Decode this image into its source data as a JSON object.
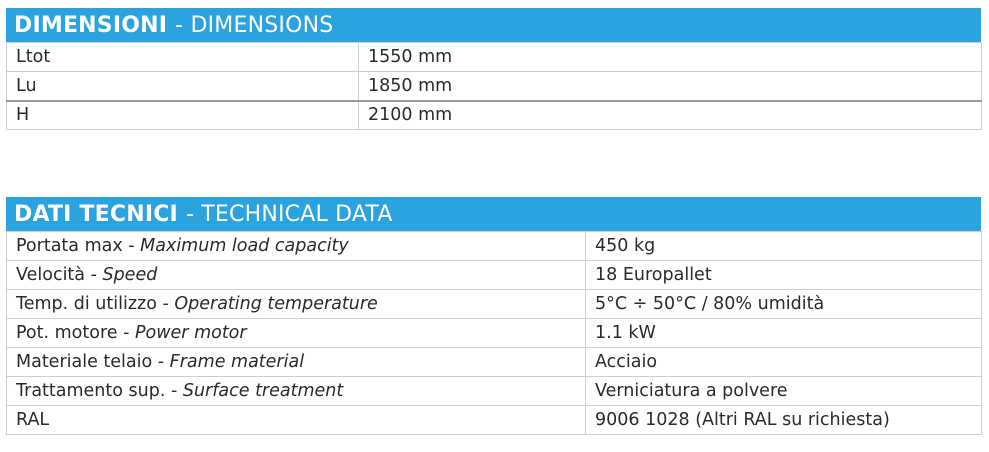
{
  "dimensions": {
    "title_bold": "DIMENSIONI",
    "title_light": "- DIMENSIONS",
    "rows": [
      {
        "label": "Ltot",
        "value": "1550 mm"
      },
      {
        "label": "Lu",
        "value": "1850 mm"
      },
      {
        "label": "H",
        "value": "2100 mm"
      }
    ]
  },
  "technical": {
    "title_bold": "DATI TECNICI",
    "title_light": "- TECHNICAL DATA",
    "rows": [
      {
        "label_it": "Portata max - ",
        "label_en": "Maximum load capacity",
        "value": "450 kg"
      },
      {
        "label_it": "Velocità - ",
        "label_en": "Speed",
        "value": "18 Europallet"
      },
      {
        "label_it": "Temp. di utilizzo - ",
        "label_en": "Operating temperature",
        "value": "5°C ÷ 50°C / 80% umidità"
      },
      {
        "label_it": "Pot. motore - ",
        "label_en": "Power motor",
        "value": "1.1 kW"
      },
      {
        "label_it": "Materiale telaio - ",
        "label_en": "Frame material",
        "value": "Acciaio"
      },
      {
        "label_it": "Trattamento sup. - ",
        "label_en": "Surface treatment",
        "value": "Verniciatura a polvere"
      },
      {
        "label_it": "RAL",
        "label_en": "",
        "value": "9006 1028 (Altri RAL su richiesta)"
      }
    ]
  }
}
